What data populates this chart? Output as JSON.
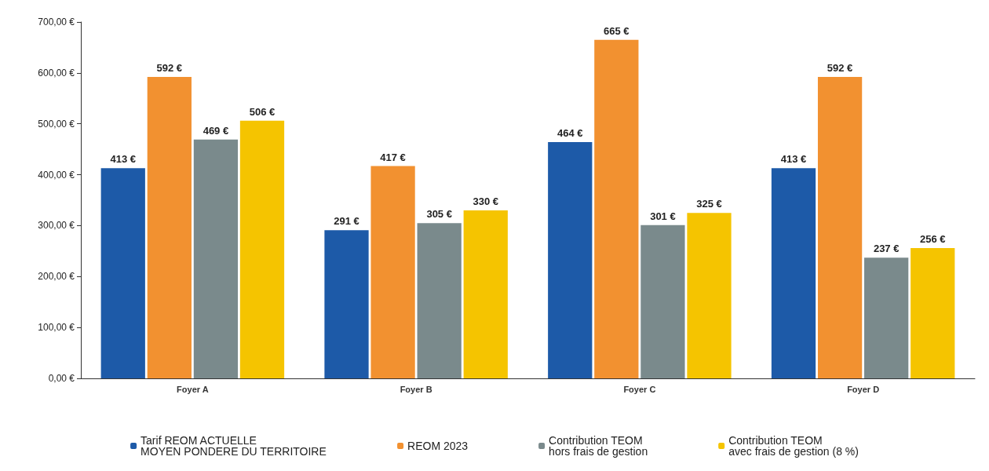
{
  "chart_data": {
    "type": "bar",
    "categories": [
      "Foyer A",
      "Foyer B",
      "Foyer C",
      "Foyer D"
    ],
    "series": [
      {
        "name": "Tarif REOM ACTUELLE\nMOYEN PONDERE DU TERRITOIRE",
        "color": "#1d5aa8",
        "values": [
          413,
          291,
          464,
          413
        ],
        "value_labels": [
          "413 €",
          "291 €",
          "464 €",
          "413 €"
        ]
      },
      {
        "name": "REOM 2023",
        "color": "#f29130",
        "values": [
          592,
          417,
          665,
          592
        ],
        "value_labels": [
          "592 €",
          "417 €",
          "665 €",
          "592 €"
        ]
      },
      {
        "name": "Contribution TEOM\nhors frais de gestion",
        "color": "#7a8a8c",
        "values": [
          469,
          305,
          301,
          237
        ],
        "value_labels": [
          "469 €",
          "305 €",
          "301 €",
          "237 €"
        ]
      },
      {
        "name": "Contribution TEOM\navec frais de gestion (8 %)",
        "color": "#f5c400",
        "values": [
          506,
          330,
          325,
          256
        ],
        "value_labels": [
          "506 €",
          "330 €",
          "325 €",
          "256 €"
        ]
      }
    ],
    "ylim": [
      0,
      700
    ],
    "yticks": [
      {
        "value": 0,
        "label": "0,00 €"
      },
      {
        "value": 100,
        "label": "100,00 €"
      },
      {
        "value": 200,
        "label": "200,00 €"
      },
      {
        "value": 300,
        "label": "300,00 €"
      },
      {
        "value": 400,
        "label": "400,00 €"
      },
      {
        "value": 500,
        "label": "500,00 €"
      },
      {
        "value": 600,
        "label": "600,00 €"
      },
      {
        "value": 700,
        "label": "700,00 €"
      }
    ],
    "grid": false,
    "legend": "bottom"
  }
}
